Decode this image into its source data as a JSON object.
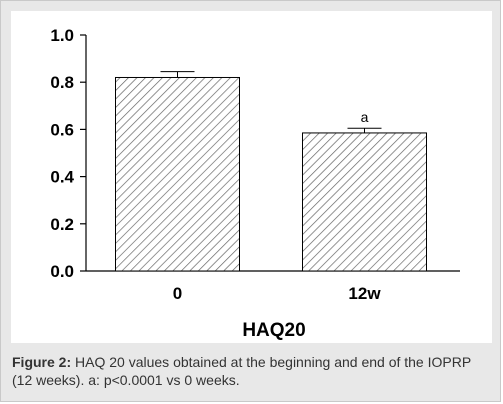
{
  "chart_data": {
    "type": "bar",
    "categories": [
      "0",
      "12w"
    ],
    "values": [
      0.82,
      0.585
    ],
    "errors": [
      0.025,
      0.02
    ],
    "annotations": [
      null,
      "a"
    ],
    "xlabel": "HAQ20",
    "ylabel": "",
    "ylim": [
      0,
      1.0
    ],
    "yticks": [
      "0.0",
      "0.2",
      "0.4",
      "0.6",
      "0.8",
      "1.0"
    ],
    "grid": false,
    "bar_fill": "hatched"
  },
  "caption": {
    "label": "Figure 2:",
    "text": " HAQ 20 values obtained at the beginning and end of the IOPRP (12 weeks). a: p<0.0001 vs 0 weeks."
  }
}
